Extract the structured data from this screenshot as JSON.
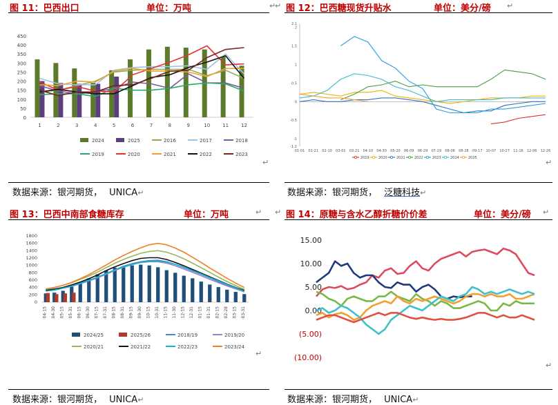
{
  "panels": [
    {
      "title": "图 11：巴西出口",
      "unit": "单位：万吨",
      "source_prefix": "数据来源：银河期货，",
      "source_tail": "UNICA"
    },
    {
      "title": "图 12：巴西糖现货升贴水",
      "unit": "单位：美分/磅",
      "source_prefix": "数据来源：银河期货，",
      "source_tail": "泛糖科技"
    },
    {
      "title": "图 13：巴西中南部食糖库存",
      "unit": "单位：万吨",
      "source_prefix": "数据来源：银河期货，",
      "source_tail": "UNICA"
    },
    {
      "title": "图 14：原糖与含水乙醇折糖价价差",
      "unit": "单位：美分/磅",
      "source_prefix": "数据来源：银河期货，",
      "source_tail": "UNICA"
    }
  ],
  "return_mark": "↵",
  "chart_data": [
    {
      "type": "bar",
      "categories": [
        "1",
        "2",
        "3",
        "4",
        "5",
        "6",
        "7",
        "8",
        "9",
        "10",
        "11",
        "12"
      ],
      "ylim": [
        0,
        450
      ],
      "yticks": [
        "0",
        "50",
        "100",
        "150",
        "200",
        "250",
        "300",
        "350",
        "400",
        "450"
      ],
      "bar_series": [
        {
          "name": "2024",
          "color": "#5b7a2a",
          "values": [
            320,
            300,
            270,
            190,
            260,
            320,
            375,
            390,
            385,
            375,
            335,
            285
          ]
        },
        {
          "name": "2025",
          "color": "#5b3f7f",
          "values": [
            200,
            190,
            185,
            185,
            225,
            null,
            null,
            null,
            null,
            null,
            null,
            null
          ]
        }
      ],
      "line_series": [
        {
          "name": "2016",
          "color": "#8faa55",
          "values": [
            140,
            150,
            175,
            200,
            250,
            260,
            265,
            265,
            265,
            230,
            260,
            215
          ]
        },
        {
          "name": "2017",
          "color": "#9fc3e6",
          "values": [
            215,
            185,
            180,
            180,
            260,
            275,
            280,
            280,
            285,
            265,
            350,
            240
          ]
        },
        {
          "name": "2018",
          "color": "#7a5a9a",
          "values": [
            175,
            145,
            130,
            140,
            160,
            195,
            185,
            160,
            240,
            190,
            190,
            160
          ]
        },
        {
          "name": "2019",
          "color": "#2ca56b",
          "values": [
            125,
            130,
            130,
            115,
            160,
            150,
            150,
            160,
            180,
            190,
            185,
            145
          ]
        },
        {
          "name": "2020",
          "color": "#e8312e",
          "values": [
            195,
            150,
            170,
            145,
            140,
            235,
            270,
            305,
            345,
            395,
            290,
            295
          ]
        },
        {
          "name": "2021",
          "color": "#f0a030",
          "values": [
            180,
            175,
            200,
            195,
            255,
            270,
            255,
            255,
            250,
            225,
            270,
            270
          ]
        },
        {
          "name": "2022",
          "color": "#111111",
          "values": [
            140,
            155,
            140,
            130,
            130,
            175,
            220,
            235,
            275,
            305,
            340,
            215
          ]
        },
        {
          "name": "2023",
          "color": "#7a2424",
          "values": [
            150,
            120,
            140,
            140,
            175,
            180,
            215,
            255,
            260,
            330,
            375,
            385
          ]
        }
      ]
    },
    {
      "type": "line",
      "ylim": [
        -1.2,
        2.1
      ],
      "yticks": [
        "-1.2",
        "-1",
        "-0.5",
        "0",
        "0.5",
        "1",
        "1.5",
        "2",
        "2.1"
      ],
      "xticks": [
        "01-01",
        "01-21",
        "02-10",
        "03-01",
        "03-21",
        "04-10",
        "04-30",
        "05-20",
        "06-09",
        "06-29",
        "07-19",
        "08-08",
        "08-28",
        "09-17",
        "10-07",
        "10-27",
        "11-16",
        "12-06",
        "12-26"
      ],
      "series": [
        {
          "name": "2019",
          "color": "#e03030",
          "values": [
            null,
            null,
            null,
            null,
            null,
            null,
            null,
            null,
            null,
            null,
            null,
            null,
            null,
            null,
            -0.6,
            -0.55,
            -0.45,
            -0.4,
            -0.35
          ]
        },
        {
          "name": "2020",
          "color": "#f0b000",
          "values": [
            0.2,
            0.25,
            0.2,
            0.15,
            0.25,
            0.25,
            0.3,
            0.15,
            0.1,
            0.05,
            0.0,
            -0.05,
            0.0,
            0.05,
            0.1,
            0.1,
            0.1,
            0.15,
            0.15
          ]
        },
        {
          "name": "2021",
          "color": "#3070c0",
          "values": [
            0.0,
            0.05,
            0.0,
            0.0,
            0.05,
            0.05,
            0.1,
            0.1,
            0.05,
            0.0,
            -0.1,
            -0.2,
            -0.3,
            -0.25,
            -0.25,
            -0.1,
            -0.05,
            0.0,
            0.0
          ]
        },
        {
          "name": "2022",
          "color": "#40a040",
          "values": [
            null,
            null,
            null,
            0.05,
            0.2,
            0.4,
            0.45,
            0.55,
            0.4,
            0.45,
            0.4,
            0.4,
            0.4,
            0.4,
            0.6,
            0.85,
            0.8,
            0.75,
            0.6
          ]
        },
        {
          "name": "2023",
          "color": "#20a0e0",
          "values": [
            null,
            null,
            null,
            1.5,
            1.75,
            1.6,
            1.1,
            0.9,
            0.55,
            0.35,
            -0.2,
            -0.3,
            -0.3,
            -0.3,
            -0.2,
            -0.2,
            -0.15,
            -0.1,
            -0.05
          ]
        },
        {
          "name": "2024",
          "color": "#40b8c8",
          "values": [
            0.1,
            0.15,
            0.3,
            0.6,
            0.75,
            0.7,
            0.6,
            0.4,
            0.3,
            0.15,
            0.0,
            0.05,
            0.05,
            0.05,
            0.05,
            0.1,
            0.1,
            0.1,
            0.1
          ]
        },
        {
          "name": "2025",
          "color": "#f0a030",
          "values": [
            0.2,
            0.15,
            0.1,
            0.1,
            0.05,
            0.0,
            null,
            null,
            null,
            null,
            null,
            null,
            null,
            null,
            null,
            null,
            null,
            null,
            null
          ]
        }
      ]
    },
    {
      "type": "bar",
      "categories": [
        "04-15",
        "04-30",
        "05-15",
        "05-31",
        "06-15",
        "06-30",
        "07-15",
        "07-31",
        "08-15",
        "08-31",
        "09-15",
        "09-30",
        "10-15",
        "10-31",
        "11-15",
        "11-30",
        "12-15",
        "12-31",
        "01-15",
        "01-31",
        "02-15",
        "02-28",
        "03-15",
        "03-31"
      ],
      "ylim": [
        0,
        1800
      ],
      "yticks": [
        "0",
        "200",
        "400",
        "600",
        "800",
        "1000",
        "1200",
        "1400",
        "1600",
        "1800"
      ],
      "bar_series": [
        {
          "name": "2024/25",
          "color": "#1f4e79",
          "values": [
            240,
            260,
            310,
            420,
            540,
            650,
            760,
            860,
            940,
            980,
            1000,
            1020,
            1000,
            950,
            870,
            800,
            720,
            650,
            560,
            480,
            410,
            340,
            280,
            220
          ]
        },
        {
          "name": "2025/26",
          "color": "#b03a2e",
          "values": [
            250,
            220,
            240,
            260,
            null,
            null,
            null,
            null,
            null,
            null,
            null,
            null,
            null,
            null,
            null,
            null,
            null,
            null,
            null,
            null,
            null,
            null,
            null,
            null
          ]
        }
      ],
      "line_series": [
        {
          "name": "2018/19",
          "color": "#4a88c8",
          "values": [
            330,
            360,
            400,
            450,
            520,
            600,
            680,
            780,
            880,
            980,
            1050,
            1100,
            1130,
            1140,
            1100,
            1030,
            940,
            850,
            760,
            660,
            560,
            470,
            380,
            300
          ]
        },
        {
          "name": "2019/20",
          "color": "#9e80c8",
          "values": [
            320,
            340,
            380,
            430,
            500,
            580,
            660,
            760,
            860,
            950,
            1020,
            1080,
            1100,
            1100,
            1060,
            990,
            900,
            810,
            720,
            620,
            530,
            440,
            360,
            280
          ]
        },
        {
          "name": "2020/21",
          "color": "#94b85a",
          "values": [
            350,
            400,
            460,
            530,
            620,
            710,
            820,
            940,
            1060,
            1160,
            1250,
            1330,
            1380,
            1400,
            1360,
            1280,
            1180,
            1060,
            940,
            810,
            680,
            560,
            450,
            350
          ]
        },
        {
          "name": "2021/22",
          "color": "#111111",
          "values": [
            320,
            350,
            400,
            470,
            550,
            640,
            740,
            860,
            960,
            1050,
            1130,
            1190,
            1210,
            1210,
            1160,
            1080,
            990,
            890,
            790,
            690,
            590,
            490,
            400,
            320
          ]
        },
        {
          "name": "2022/23",
          "color": "#18b0d0",
          "values": [
            300,
            330,
            380,
            440,
            510,
            590,
            680,
            780,
            880,
            960,
            1030,
            1080,
            1110,
            1120,
            1090,
            1030,
            950,
            860,
            770,
            670,
            580,
            480,
            390,
            300
          ]
        },
        {
          "name": "2023/24",
          "color": "#f08020",
          "values": [
            360,
            400,
            460,
            540,
            640,
            750,
            880,
            1010,
            1150,
            1270,
            1380,
            1480,
            1560,
            1600,
            1560,
            1470,
            1360,
            1220,
            1080,
            930,
            790,
            650,
            520,
            400
          ]
        }
      ]
    },
    {
      "type": "line",
      "ylim": [
        -10,
        15
      ],
      "yticks": [
        "15.00",
        "10.00",
        "5.00",
        "0.00",
        "(5.00)",
        "(10.00)"
      ],
      "series": [
        {
          "name": "",
          "color": "#e04860",
          "values": [
            3,
            4.5,
            5,
            4.8,
            5.2,
            4.5,
            4.8,
            5.5,
            6,
            7.5,
            7,
            8.5,
            9,
            7.8,
            8,
            9.5,
            10.5,
            9,
            8.5,
            10,
            11,
            11.5,
            12,
            12.5,
            11.5,
            12.5,
            12.8,
            13,
            12.5,
            12,
            13.2,
            12.8,
            12,
            10,
            8,
            7.5
          ]
        },
        {
          "name": "",
          "color": "#1f3a7a",
          "values": [
            6,
            7,
            8,
            10.5,
            9.5,
            10,
            8,
            7,
            7.5,
            7.5,
            6,
            5,
            4.8,
            6,
            5.5,
            5.5,
            4,
            5,
            5.5,
            4.5,
            3,
            2.5,
            3,
            2.8,
            3,
            3,
            null,
            null,
            null,
            null,
            null,
            null,
            null,
            null,
            null,
            null
          ]
        },
        {
          "name": "",
          "color": "#7ab648",
          "values": [
            4,
            3.5,
            2.5,
            2,
            1,
            2.5,
            3,
            2.5,
            2,
            2,
            3,
            3,
            4,
            3,
            2.5,
            2,
            3.5,
            2.5,
            2,
            1,
            2,
            1.5,
            0.5,
            0.5,
            1,
            1.5,
            2,
            1.5,
            0,
            0,
            1.5,
            1,
            2,
            1.5,
            1.5,
            1.5
          ]
        },
        {
          "name": "",
          "color": "#f0a030",
          "values": [
            -1,
            -0.5,
            -1.5,
            -0.8,
            -0.5,
            -1,
            -2,
            -1.5,
            0,
            1,
            1.5,
            2,
            1.5,
            3,
            2,
            1.5,
            2.5,
            2,
            2.5,
            3,
            2.5,
            2,
            1.5,
            2,
            3,
            3.5,
            3.5,
            3,
            3.5,
            3,
            3,
            3.5,
            2.5,
            2.5,
            3,
            3.5
          ]
        },
        {
          "name": "",
          "color": "#40c0c8",
          "values": [
            0,
            0.5,
            -0.5,
            0,
            1,
            0.5,
            -0.5,
            -1.5,
            -3,
            -4,
            -5,
            -4,
            -2,
            -1,
            0,
            1,
            0.5,
            0,
            1,
            2,
            3,
            2.5,
            2,
            3,
            3.5,
            5,
            4.5,
            3.5,
            4,
            3.5,
            4,
            4.5,
            4,
            3.5,
            4,
            3.5
          ]
        },
        {
          "name": "",
          "color": "#e05040",
          "values": [
            -2,
            -1.5,
            -1,
            -1,
            -1.5,
            -2,
            -2.5,
            -2,
            -1.5,
            -1,
            -0.5,
            -1,
            -0.5,
            -0.5,
            -1,
            -1.5,
            -1.8,
            -1.5,
            -1.8,
            -2,
            -1.8,
            -2,
            -2,
            -1.8,
            -1.5,
            -1,
            -0.5,
            -0.5,
            -1,
            -1.5,
            -1,
            -1.5,
            -1.5,
            -1,
            -1.5,
            -2
          ]
        }
      ]
    }
  ]
}
